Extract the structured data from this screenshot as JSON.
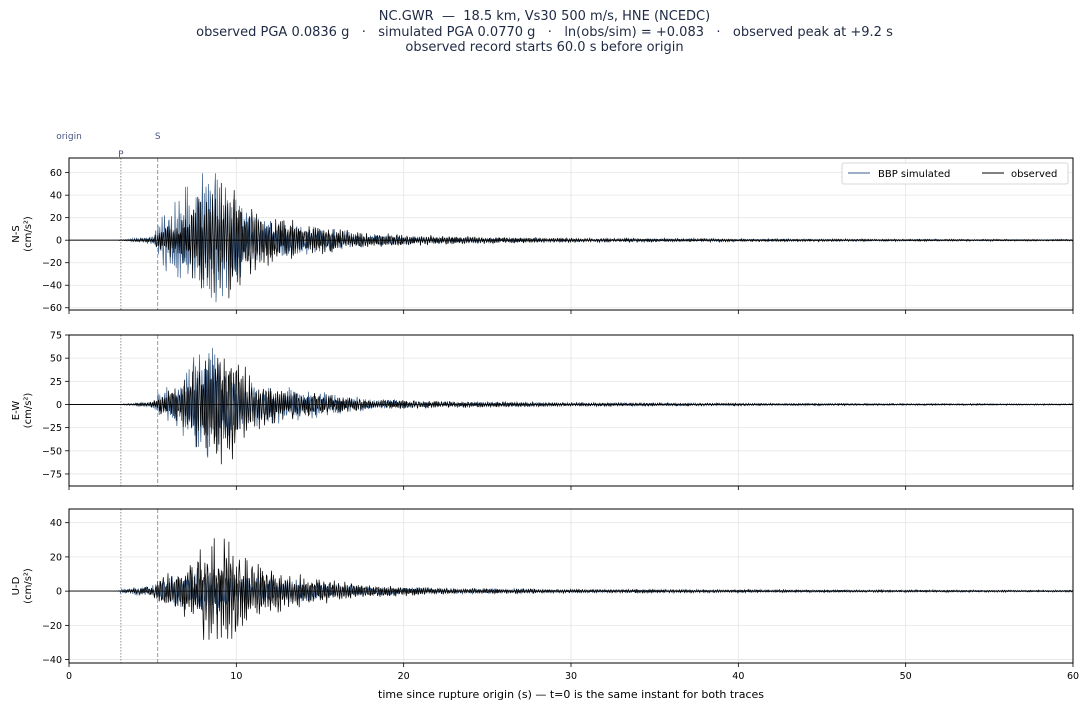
{
  "figure": {
    "title_lines": [
      "NC.GWR  —  18.5 km, Vs30 500 m/s, HNE (NCEDC)",
      "observed PGA 0.0836 g   ·   simulated PGA 0.0770 g   ·   ln(obs/sim) = +0.083   ·   observed peak at +9.2 s",
      "observed record starts 60.0 s before origin"
    ],
    "marker_labels": {
      "origin": "origin",
      "p": "P",
      "s": "S"
    },
    "xlabel": "time since rupture origin (s)   —   t=0 is the same instant for both traces"
  },
  "colors": {
    "simulated": "#3b5f8a",
    "observed": "#000000",
    "p_line": "#888888",
    "s_line": "#7f8fbf",
    "grid": "#e5e5e5",
    "marker_text": "#4a5580"
  },
  "chart_data": {
    "type": "line",
    "x_range": [
      0,
      60
    ],
    "x_ticks": [
      0,
      10,
      20,
      30,
      40,
      50,
      60
    ],
    "x_tick_labels": [
      "0",
      "10",
      "20",
      "30",
      "40",
      "50",
      "60"
    ],
    "grid": true,
    "legend_placement": "top-right",
    "series_names": [
      "BBP simulated",
      "observed"
    ],
    "markers": {
      "origin": 0,
      "p_arrival": 3.1,
      "s_arrival": 5.3
    },
    "observed_peak_time": 9.2,
    "panels": [
      {
        "component": "N-S",
        "ylabel_line1": "N-S",
        "ylabel_line2": "(cm/s²)",
        "ylim": [
          -62,
          73
        ],
        "yticks": [
          -60,
          -40,
          -20,
          0,
          20,
          40,
          60
        ],
        "ytick_labels": [
          "−60",
          "−40",
          "−20",
          "0",
          "20",
          "40",
          "60"
        ],
        "show_legend": true,
        "envelopes": [
          [
            3.0,
            0.4,
            0.2
          ],
          [
            5.0,
            4,
            2
          ],
          [
            5.5,
            25,
            12
          ],
          [
            6.5,
            40,
            22
          ],
          [
            7.5,
            62,
            40
          ],
          [
            8.5,
            68,
            50
          ],
          [
            9.5,
            45,
            55
          ],
          [
            11.0,
            25,
            30
          ],
          [
            13.0,
            18,
            20
          ],
          [
            15.0,
            12,
            13
          ],
          [
            18.0,
            6,
            7
          ],
          [
            22.0,
            3,
            4
          ],
          [
            30.0,
            1.5,
            2
          ],
          [
            45.0,
            1.0,
            1.2
          ],
          [
            60.0,
            0.6,
            0.8
          ]
        ]
      },
      {
        "component": "E-W",
        "ylabel_line1": "E-W",
        "ylabel_line2": "(cm/s²)",
        "ylim": [
          -88,
          75
        ],
        "yticks": [
          -75,
          -50,
          -25,
          0,
          25,
          50,
          75
        ],
        "ytick_labels": [
          "−75",
          "−50",
          "−25",
          "0",
          "25",
          "50",
          "75"
        ],
        "show_legend": false,
        "envelopes": [
          [
            3.0,
            0.3,
            0.2
          ],
          [
            5.0,
            3,
            3
          ],
          [
            5.5,
            18,
            12
          ],
          [
            6.5,
            30,
            20
          ],
          [
            7.5,
            60,
            45
          ],
          [
            8.5,
            68,
            70
          ],
          [
            9.5,
            40,
            78
          ],
          [
            11.0,
            25,
            30
          ],
          [
            13.0,
            20,
            18
          ],
          [
            15.0,
            15,
            12
          ],
          [
            18.0,
            7,
            6
          ],
          [
            22.0,
            3,
            4
          ],
          [
            30.0,
            2,
            2
          ],
          [
            45.0,
            1.2,
            1.2
          ],
          [
            60.0,
            0.6,
            0.8
          ]
        ]
      },
      {
        "component": "U-D",
        "ylabel_line1": "U-D",
        "ylabel_line2": "(cm/s²)",
        "ylim": [
          -42,
          48
        ],
        "yticks": [
          -40,
          -20,
          0,
          20,
          40
        ],
        "ytick_labels": [
          "−40",
          "−20",
          "0",
          "20",
          "40"
        ],
        "show_legend": false,
        "envelopes": [
          [
            3.0,
            1.0,
            0.2
          ],
          [
            5.0,
            4,
            3
          ],
          [
            5.5,
            8,
            10
          ],
          [
            6.5,
            10,
            12
          ],
          [
            7.5,
            14,
            22
          ],
          [
            8.5,
            15,
            35
          ],
          [
            9.5,
            12,
            38
          ],
          [
            11.0,
            10,
            18
          ],
          [
            13.0,
            8,
            12
          ],
          [
            15.0,
            6,
            8
          ],
          [
            18.0,
            3,
            4
          ],
          [
            22.0,
            2,
            2
          ],
          [
            30.0,
            1,
            1.2
          ],
          [
            45.0,
            0.8,
            0.8
          ],
          [
            60.0,
            0.5,
            0.6
          ]
        ]
      }
    ]
  }
}
